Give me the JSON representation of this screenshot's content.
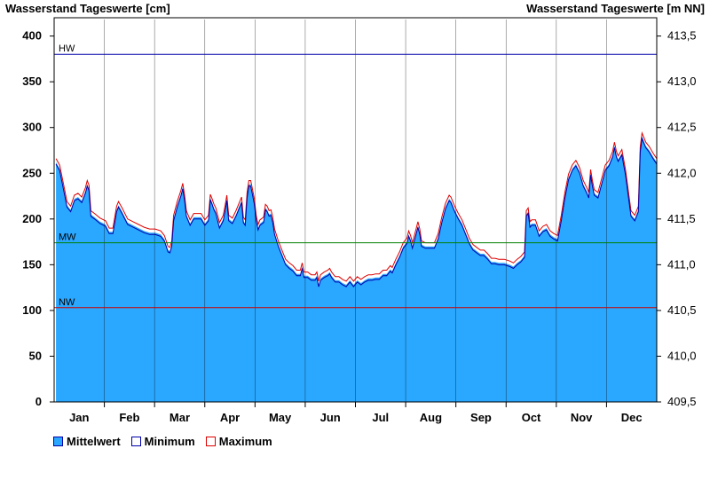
{
  "chart_data": {
    "type": "area",
    "title_left": "Wasserstand Tageswerte [cm]",
    "title_right": "Wasserstand Tageswerte [m NN]",
    "y_left": {
      "min": 0,
      "max": 400,
      "ticks": [
        "0",
        "50",
        "100",
        "150",
        "200",
        "250",
        "300",
        "350",
        "400"
      ]
    },
    "y_right": {
      "min": 409.5,
      "max": 413.5,
      "ticks": [
        "409,5",
        "410,0",
        "410,5",
        "411,0",
        "411,5",
        "412,0",
        "412,5",
        "413,0",
        "413,5"
      ]
    },
    "months": [
      "Jan",
      "Feb",
      "Mar",
      "Apr",
      "May",
      "Jun",
      "Jul",
      "Aug",
      "Sep",
      "Oct",
      "Nov",
      "Dec"
    ],
    "reference_lines": [
      {
        "label": "HW",
        "value": 380,
        "color": "#0000aa"
      },
      {
        "label": "MW",
        "value": 174,
        "color": "#008000"
      },
      {
        "label": "NW",
        "value": 103,
        "color": "#cc0000"
      }
    ],
    "series": [
      {
        "name": "Mittelwert",
        "color": "#2aa7ff"
      },
      {
        "name": "Minimum",
        "color": "#0000aa"
      },
      {
        "name": "Maximum",
        "color": "#dd0000"
      }
    ],
    "mittelwert_points": [
      [
        1,
        262
      ],
      [
        3,
        255
      ],
      [
        5,
        235
      ],
      [
        7,
        215
      ],
      [
        9,
        210
      ],
      [
        11,
        222
      ],
      [
        13,
        224
      ],
      [
        15,
        220
      ],
      [
        17,
        230
      ],
      [
        18,
        238
      ],
      [
        19,
        233
      ],
      [
        20,
        205
      ],
      [
        22,
        202
      ],
      [
        25,
        197
      ],
      [
        28,
        194
      ],
      [
        30,
        186
      ],
      [
        32,
        186
      ],
      [
        34,
        210
      ],
      [
        35,
        215
      ],
      [
        37,
        208
      ],
      [
        40,
        196
      ],
      [
        43,
        193
      ],
      [
        46,
        190
      ],
      [
        49,
        187
      ],
      [
        52,
        185
      ],
      [
        55,
        185
      ],
      [
        58,
        183
      ],
      [
        60,
        178
      ],
      [
        61,
        172
      ],
      [
        62,
        166
      ],
      [
        63,
        165
      ],
      [
        64,
        172
      ],
      [
        65,
        200
      ],
      [
        67,
        215
      ],
      [
        69,
        227
      ],
      [
        70,
        235
      ],
      [
        71,
        222
      ],
      [
        72,
        205
      ],
      [
        74,
        195
      ],
      [
        76,
        202
      ],
      [
        78,
        202
      ],
      [
        80,
        202
      ],
      [
        82,
        195
      ],
      [
        84,
        200
      ],
      [
        85,
        223
      ],
      [
        86,
        218
      ],
      [
        87,
        212
      ],
      [
        88,
        208
      ],
      [
        90,
        192
      ],
      [
        92,
        200
      ],
      [
        93,
        210
      ],
      [
        94,
        222
      ],
      [
        95,
        200
      ],
      [
        97,
        197
      ],
      [
        99,
        205
      ],
      [
        101,
        215
      ],
      [
        102,
        220
      ],
      [
        103,
        198
      ],
      [
        104,
        195
      ],
      [
        105,
        225
      ],
      [
        106,
        238
      ],
      [
        107,
        238
      ],
      [
        108,
        228
      ],
      [
        109,
        218
      ],
      [
        110,
        200
      ],
      [
        111,
        190
      ],
      [
        112,
        195
      ],
      [
        114,
        198
      ],
      [
        115,
        212
      ],
      [
        116,
        210
      ],
      [
        117,
        205
      ],
      [
        118,
        206
      ],
      [
        119,
        198
      ],
      [
        120,
        185
      ],
      [
        122,
        172
      ],
      [
        124,
        162
      ],
      [
        126,
        152
      ],
      [
        128,
        148
      ],
      [
        130,
        145
      ],
      [
        132,
        140
      ],
      [
        134,
        140
      ],
      [
        135,
        148
      ],
      [
        136,
        138
      ],
      [
        138,
        138
      ],
      [
        140,
        135
      ],
      [
        142,
        135
      ],
      [
        143,
        138
      ],
      [
        144,
        128
      ],
      [
        145,
        135
      ],
      [
        147,
        138
      ],
      [
        149,
        140
      ],
      [
        150,
        142
      ],
      [
        151,
        138
      ],
      [
        153,
        133
      ],
      [
        155,
        133
      ],
      [
        157,
        130
      ],
      [
        159,
        128
      ],
      [
        161,
        133
      ],
      [
        163,
        128
      ],
      [
        165,
        133
      ],
      [
        167,
        130
      ],
      [
        169,
        133
      ],
      [
        171,
        135
      ],
      [
        173,
        135
      ],
      [
        175,
        136
      ],
      [
        177,
        136
      ],
      [
        179,
        140
      ],
      [
        181,
        140
      ],
      [
        183,
        145
      ],
      [
        184,
        143
      ],
      [
        186,
        152
      ],
      [
        188,
        160
      ],
      [
        190,
        170
      ],
      [
        192,
        175
      ],
      [
        193,
        183
      ],
      [
        194,
        178
      ],
      [
        195,
        170
      ],
      [
        197,
        185
      ],
      [
        198,
        193
      ],
      [
        199,
        185
      ],
      [
        200,
        172
      ],
      [
        202,
        170
      ],
      [
        205,
        170
      ],
      [
        207,
        170
      ],
      [
        209,
        180
      ],
      [
        211,
        198
      ],
      [
        213,
        213
      ],
      [
        215,
        222
      ],
      [
        216,
        220
      ],
      [
        218,
        210
      ],
      [
        220,
        202
      ],
      [
        222,
        195
      ],
      [
        224,
        185
      ],
      [
        226,
        175
      ],
      [
        228,
        168
      ],
      [
        230,
        165
      ],
      [
        232,
        162
      ],
      [
        234,
        162
      ],
      [
        236,
        158
      ],
      [
        238,
        153
      ],
      [
        240,
        153
      ],
      [
        242,
        152
      ],
      [
        245,
        152
      ],
      [
        248,
        150
      ],
      [
        250,
        148
      ],
      [
        252,
        152
      ],
      [
        254,
        155
      ],
      [
        256,
        160
      ],
      [
        257,
        205
      ],
      [
        258,
        208
      ],
      [
        259,
        193
      ],
      [
        260,
        195
      ],
      [
        262,
        195
      ],
      [
        264,
        183
      ],
      [
        266,
        188
      ],
      [
        268,
        190
      ],
      [
        270,
        183
      ],
      [
        272,
        180
      ],
      [
        274,
        178
      ],
      [
        276,
        200
      ],
      [
        278,
        225
      ],
      [
        280,
        245
      ],
      [
        282,
        255
      ],
      [
        284,
        260
      ],
      [
        286,
        252
      ],
      [
        288,
        238
      ],
      [
        290,
        230
      ],
      [
        291,
        225
      ],
      [
        292,
        250
      ],
      [
        293,
        238
      ],
      [
        294,
        228
      ],
      [
        296,
        225
      ],
      [
        298,
        240
      ],
      [
        300,
        255
      ],
      [
        302,
        260
      ],
      [
        304,
        270
      ],
      [
        305,
        280
      ],
      [
        306,
        270
      ],
      [
        307,
        265
      ],
      [
        309,
        272
      ],
      [
        311,
        250
      ],
      [
        313,
        220
      ],
      [
        314,
        205
      ],
      [
        316,
        200
      ],
      [
        318,
        210
      ],
      [
        319,
        275
      ],
      [
        320,
        290
      ],
      [
        322,
        280
      ],
      [
        324,
        275
      ],
      [
        326,
        268
      ],
      [
        328,
        262
      ]
    ]
  },
  "legend": {
    "mittelwert": "Mittelwert",
    "minimum": "Minimum",
    "maximum": "Maximum"
  }
}
